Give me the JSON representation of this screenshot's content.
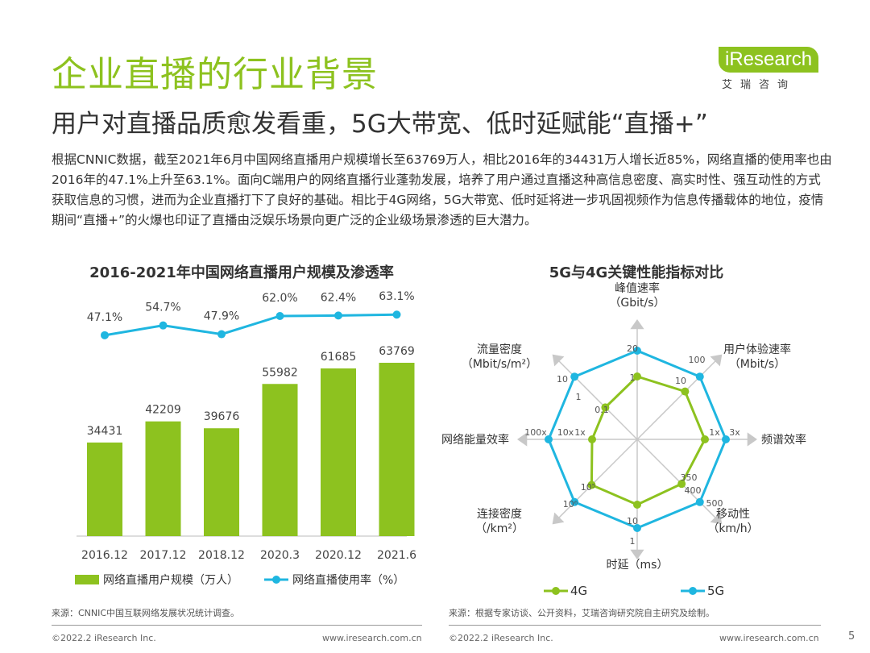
{
  "header": {
    "title": "企业直播的行业背景",
    "subtitle": "用户对直播品质愈发看重，5G大带宽、低时延赋能“直播+”",
    "body": "根据CNNIC数据，截至2021年6月中国网络直播用户规模增长至63769万人，相比2016年的34431万人增长近85%，网络直播的使用率也由2016年的47.1%上升至63.1%。面向C端用户的网络直播行业蓬勃发展，培养了用户通过直播这种高信息密度、高实时性、强互动性的方式获取信息的习惯，进而为企业直播打下了良好的基础。相比于4G网络，5G大带宽、低时延将进一步巩固视频作为信息传播载体的地位，疫情期间“直播+”的火爆也印证了直播由泛娱乐场景向更广泛的企业级场景渗透的巨大潜力。"
  },
  "logo": {
    "brand": "iResearch",
    "cn": "艾瑞咨询"
  },
  "colors": {
    "green": "#8dc21f",
    "blue": "#1fb6e0"
  },
  "chart_data": [
    {
      "type": "bar",
      "title": "2016-2021年中国网络直播用户规模及渗透率",
      "categories": [
        "2016.12",
        "2017.12",
        "2018.12",
        "2020.3",
        "2020.12",
        "2021.6"
      ],
      "series": [
        {
          "name": "网络直播用户规模（万人）",
          "type": "bar",
          "values": [
            34431,
            42209,
            39676,
            55982,
            61685,
            63769
          ],
          "labels": [
            "34431",
            "42209",
            "39676",
            "55982",
            "61685",
            "63769"
          ]
        },
        {
          "name": "网络直播使用率（%）",
          "type": "line",
          "values": [
            47.1,
            54.7,
            47.9,
            62.0,
            62.4,
            63.1
          ],
          "labels": [
            "47.1%",
            "54.7%",
            "47.9%",
            "62.0%",
            "62.4%",
            "63.1%"
          ]
        }
      ],
      "source": "来源：CNNIC中国互联网络发展状况统计调查。"
    },
    {
      "type": "radar",
      "title": "5G与4G关键性能指标对比",
      "axes": [
        {
          "name": "峰值速率",
          "unit": "（Gbit/s）",
          "ticks": [
            "1",
            "20"
          ]
        },
        {
          "name": "用户体验速率",
          "unit": "（Mbit/s）",
          "ticks": [
            "10",
            "100"
          ]
        },
        {
          "name": "频谱效率",
          "unit": "",
          "ticks": [
            "1x",
            "3x"
          ]
        },
        {
          "name": "移动性",
          "unit": "（km/h）",
          "ticks": [
            "350",
            "400",
            "500"
          ]
        },
        {
          "name": "时延（ms）",
          "unit": "",
          "ticks": [
            "10",
            "1"
          ]
        },
        {
          "name": "连接密度",
          "unit": "（/km²）",
          "ticks": [
            "10⁵",
            "10⁶"
          ]
        },
        {
          "name": "网络能量效率",
          "unit": "",
          "ticks": [
            "1x",
            "10x",
            "100x"
          ]
        },
        {
          "name": "流量密度",
          "unit": "（Mbit/s/m²）",
          "ticks": [
            "0.1",
            "1",
            "10"
          ]
        }
      ],
      "series": [
        {
          "name": "4G",
          "values": [
            "1",
            "10",
            "1x",
            "350",
            "10",
            "10⁵",
            "1x",
            "0.1"
          ]
        },
        {
          "name": "5G",
          "values": [
            "20",
            "100",
            "3x",
            "500",
            "1",
            "10⁶",
            "100x",
            "10"
          ]
        }
      ],
      "source": "来源：根据专家访谈、公开资料，艾瑞咨询研究院自主研究及绘制。"
    }
  ],
  "footer": {
    "copyright_left": "©2022.2 iResearch Inc.",
    "url_left": "www.iresearch.com.cn",
    "copyright_right": "©2022.2 iResearch Inc.",
    "url_right": "www.iresearch.com.cn",
    "page": "5"
  }
}
